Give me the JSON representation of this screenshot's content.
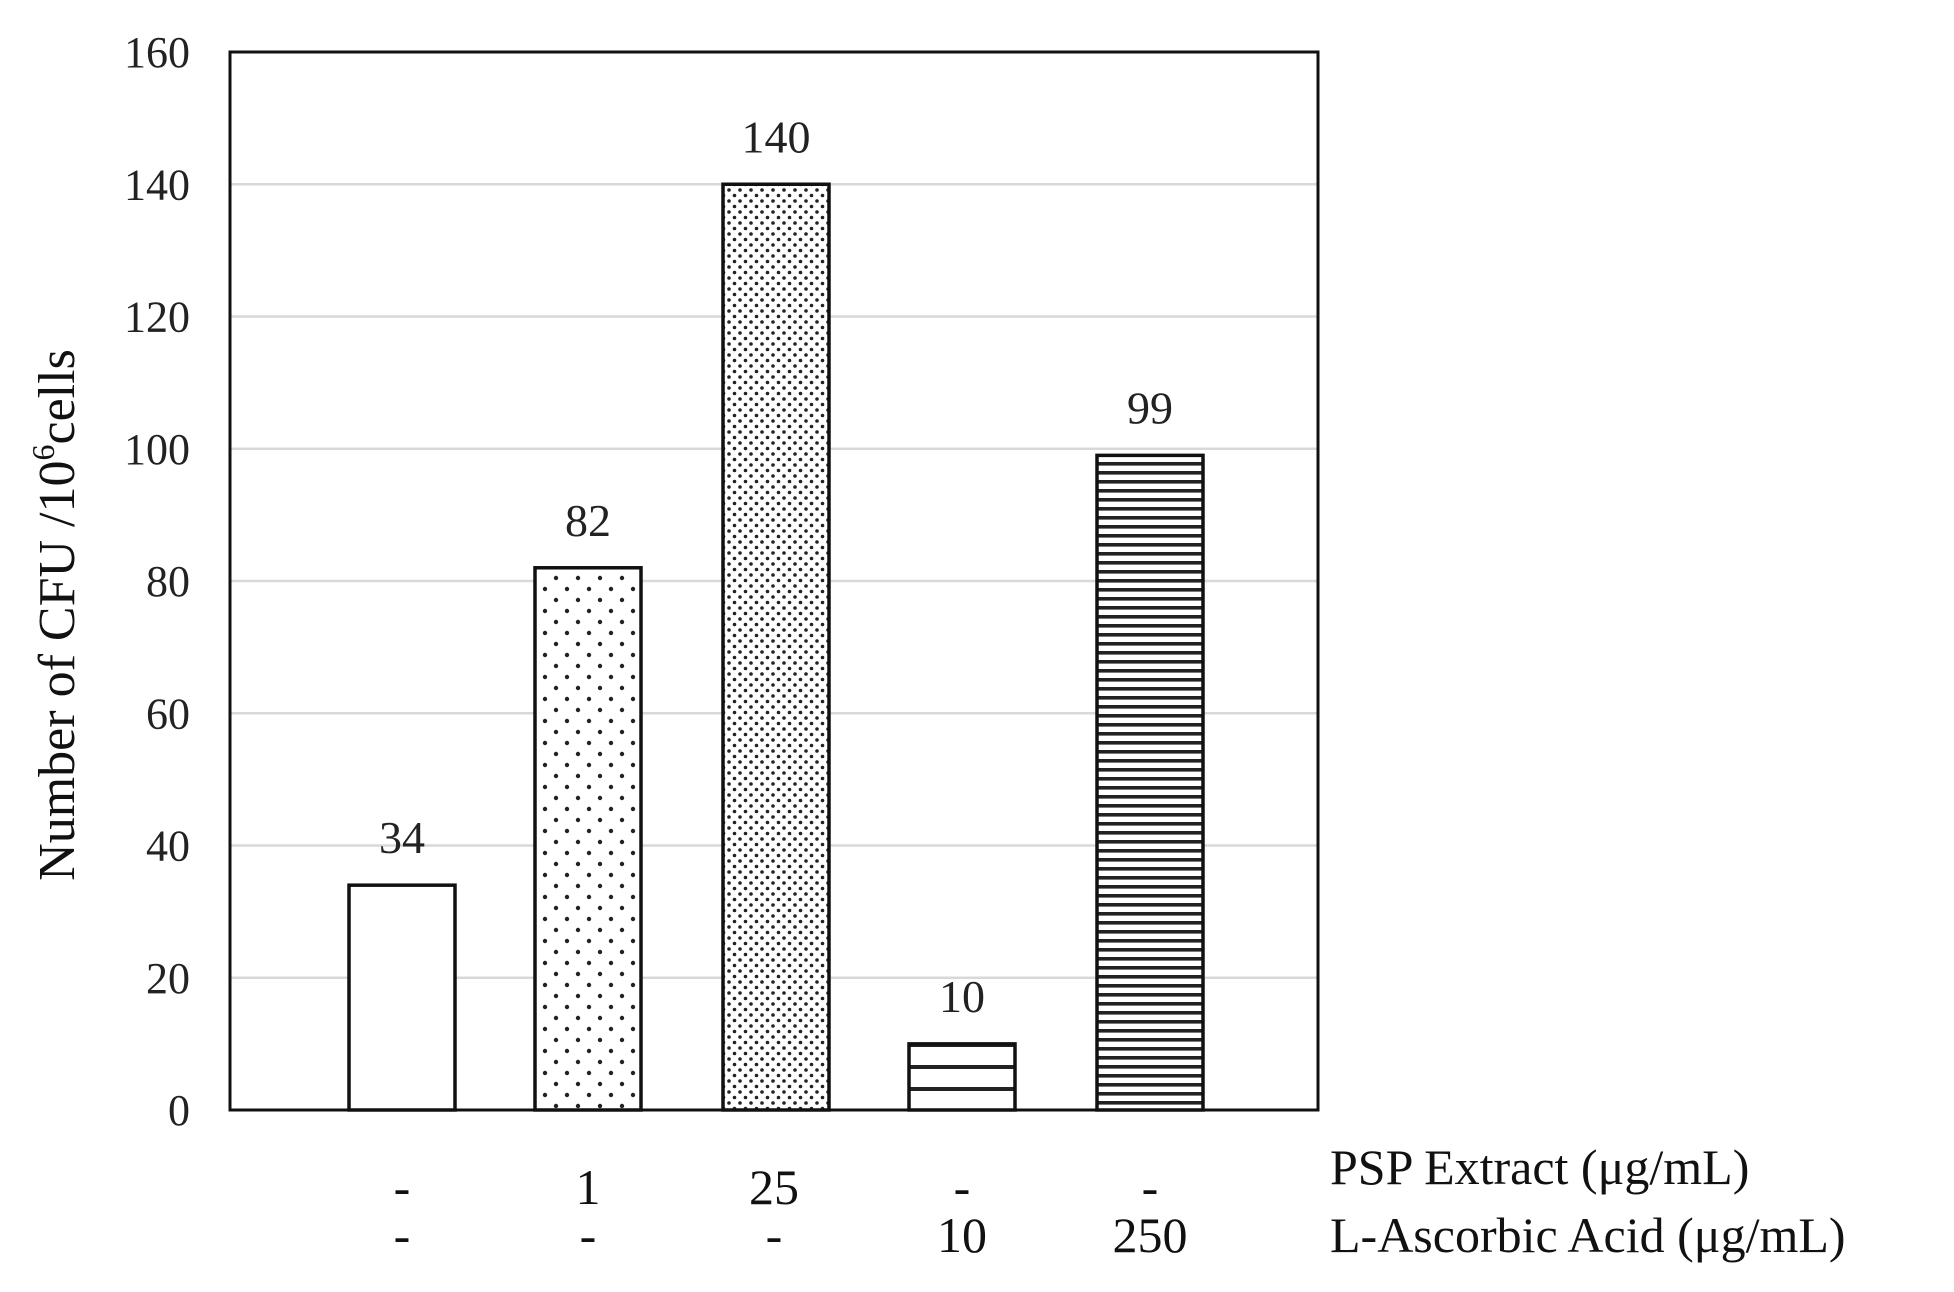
{
  "chart_data": {
    "type": "bar",
    "ylabel_main": "Number of CFU /10",
    "ylabel_sup": "6",
    "ylabel_tail": "cells",
    "ylim": [
      0,
      160
    ],
    "yticks": [
      0,
      20,
      40,
      60,
      80,
      100,
      120,
      140,
      160
    ],
    "grid": true,
    "values": [
      34,
      82,
      140,
      10,
      99
    ],
    "value_labels": [
      "34",
      "82",
      "140",
      "10",
      "99"
    ],
    "bar_patterns": [
      "none",
      "sparse-dots",
      "dense-dots",
      "sparse-stripes",
      "dense-stripes"
    ],
    "condition_rows": [
      {
        "label": "PSP Extract (μg/mL)",
        "values": [
          "-",
          "1",
          "25",
          "-",
          "-"
        ]
      },
      {
        "label": "L-Ascorbic Acid (μg/mL)",
        "values": [
          "-",
          "-",
          "-",
          "10",
          "250"
        ]
      }
    ]
  }
}
